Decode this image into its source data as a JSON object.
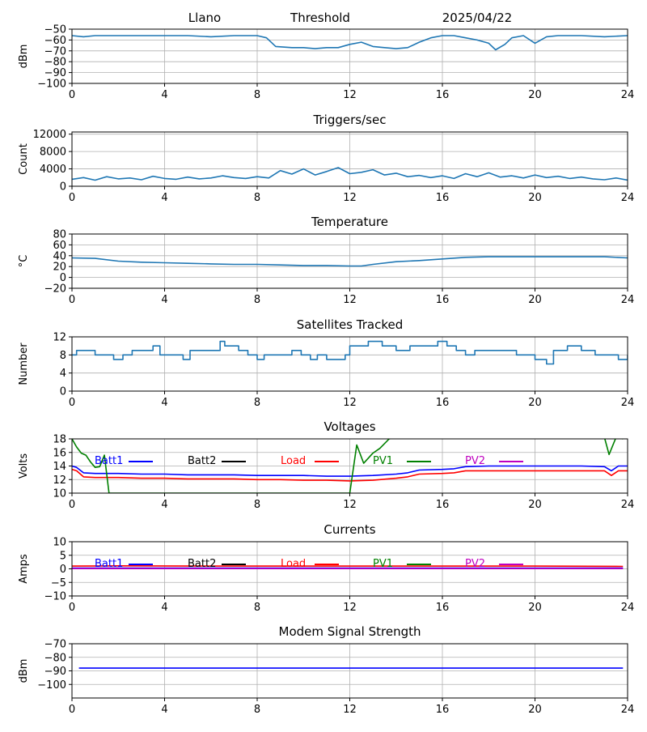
{
  "header": {
    "station": "Llano",
    "mode": "Threshold",
    "date": "2025/04/22"
  },
  "chart_data": [
    {
      "type": "line",
      "title": "",
      "ylabel": "dBm",
      "xlim": [
        0,
        24
      ],
      "ylim": [
        -100,
        -50
      ],
      "xticks": [
        0,
        4,
        8,
        12,
        16,
        20,
        24
      ],
      "yticks": [
        -100,
        -90,
        -80,
        -70,
        -60,
        -50
      ],
      "grid": true,
      "series": [
        {
          "name": "",
          "color": "#1f77b4",
          "x": [
            0,
            0.5,
            1,
            2,
            3,
            4,
            5,
            6,
            7,
            8,
            8.4,
            8.8,
            9.5,
            10,
            10.5,
            11,
            11.5,
            12,
            12.5,
            13,
            13.5,
            14,
            14.5,
            15,
            15.5,
            16,
            16.5,
            17,
            17.5,
            18,
            18.3,
            18.7,
            19,
            19.5,
            20,
            20.5,
            21,
            22,
            23,
            24
          ],
          "y": [
            -56,
            -57,
            -56,
            -56,
            -56,
            -56,
            -56,
            -57,
            -56,
            -56,
            -58,
            -66,
            -67,
            -67,
            -68,
            -67,
            -67,
            -64,
            -62,
            -66,
            -67,
            -68,
            -67,
            -62,
            -58,
            -56,
            -56,
            -58,
            -60,
            -63,
            -69,
            -64,
            -58,
            -56,
            -63,
            -57,
            -56,
            -56,
            -57,
            -56
          ]
        }
      ]
    },
    {
      "type": "line",
      "title": "Triggers/sec",
      "ylabel": "Count",
      "xlim": [
        0,
        24
      ],
      "ylim": [
        0,
        12500
      ],
      "xticks": [
        0,
        4,
        8,
        12,
        16,
        20,
        24
      ],
      "yticks": [
        0,
        4000,
        8000,
        12000
      ],
      "grid": true,
      "series": [
        {
          "name": "",
          "color": "#1f77b4",
          "x": [
            0,
            0.5,
            1,
            1.5,
            2,
            2.5,
            3,
            3.5,
            4,
            4.5,
            5,
            5.5,
            6,
            6.5,
            7,
            7.5,
            8,
            8.5,
            9,
            9.5,
            10,
            10.5,
            11,
            11.5,
            12,
            12.5,
            13,
            13.5,
            14,
            14.5,
            15,
            15.5,
            16,
            16.5,
            17,
            17.5,
            18,
            18.5,
            19,
            19.5,
            20,
            20.5,
            21,
            21.5,
            22,
            22.5,
            23,
            23.5,
            24
          ],
          "y": [
            1600,
            2000,
            1400,
            2200,
            1700,
            1900,
            1500,
            2300,
            1800,
            1600,
            2100,
            1700,
            1900,
            2400,
            2000,
            1800,
            2200,
            1900,
            3600,
            2800,
            4000,
            2600,
            3400,
            4300,
            2900,
            3200,
            3800,
            2600,
            3000,
            2200,
            2500,
            2000,
            2400,
            1800,
            2900,
            2200,
            3100,
            2100,
            2400,
            1900,
            2600,
            2000,
            2300,
            1800,
            2100,
            1700,
            1500,
            1900,
            1400
          ]
        }
      ]
    },
    {
      "type": "line",
      "title": "Temperature",
      "ylabel": "°C",
      "xlim": [
        0,
        24
      ],
      "ylim": [
        -20,
        80
      ],
      "xticks": [
        0,
        4,
        8,
        12,
        16,
        20,
        24
      ],
      "yticks": [
        -20,
        0,
        20,
        40,
        60,
        80
      ],
      "grid": true,
      "series": [
        {
          "name": "",
          "color": "#1f77b4",
          "x": [
            0,
            1,
            2,
            3,
            4,
            5,
            6,
            7,
            8,
            9,
            10,
            11,
            12,
            12.5,
            13,
            14,
            15,
            16,
            17,
            18,
            19,
            20,
            21,
            22,
            23,
            24
          ],
          "y": [
            36,
            35,
            30,
            28,
            27,
            26,
            25,
            24,
            24,
            23,
            22,
            22,
            21,
            21,
            24,
            29,
            31,
            34,
            37,
            38,
            38,
            38,
            38,
            38,
            38,
            36
          ]
        }
      ]
    },
    {
      "type": "line",
      "title": "Satellites Tracked",
      "ylabel": "Number",
      "xlim": [
        0,
        24
      ],
      "ylim": [
        0,
        12
      ],
      "xticks": [
        0,
        4,
        8,
        12,
        16,
        20,
        24
      ],
      "yticks": [
        0,
        4,
        8,
        12
      ],
      "grid": true,
      "series": [
        {
          "name": "",
          "color": "#1f77b4",
          "step": true,
          "x": [
            0,
            0.2,
            0.4,
            1,
            1.3,
            1.8,
            2.2,
            2.6,
            3.5,
            3.8,
            4.8,
            5.1,
            6,
            6.4,
            6.6,
            7.2,
            7.6,
            8,
            8.3,
            8.8,
            9.5,
            9.9,
            10.3,
            10.6,
            11,
            11.8,
            12,
            12.4,
            12.8,
            13.4,
            14,
            14.6,
            15.2,
            15.8,
            16.2,
            16.6,
            17,
            17.4,
            18,
            18.8,
            19.2,
            20,
            20.5,
            20.8,
            21.4,
            22,
            22.6,
            23,
            23.6,
            24
          ],
          "y": [
            8,
            9,
            9,
            8,
            8,
            7,
            8,
            9,
            10,
            8,
            7,
            9,
            9,
            11,
            10,
            9,
            8,
            7,
            8,
            8,
            9,
            8,
            7,
            8,
            7,
            8,
            10,
            10,
            11,
            10,
            9,
            10,
            10,
            11,
            10,
            9,
            8,
            9,
            9,
            9,
            8,
            7,
            6,
            9,
            10,
            9,
            8,
            8,
            7,
            8
          ]
        }
      ]
    },
    {
      "type": "line",
      "title": "Voltages",
      "ylabel": "Volts",
      "xlim": [
        0,
        24
      ],
      "ylim": [
        10,
        18
      ],
      "xticks": [
        0,
        4,
        8,
        12,
        16,
        20,
        24
      ],
      "yticks": [
        10,
        12,
        14,
        16,
        18
      ],
      "grid": true,
      "legend": "top, in a single row",
      "series": [
        {
          "name": "Batt1",
          "color": "#0000ff",
          "x": [
            0,
            0.2,
            0.5,
            1,
            2,
            3,
            4,
            5,
            6,
            7,
            8,
            9,
            10,
            11,
            12,
            13,
            14,
            14.5,
            15,
            16,
            16.5,
            17,
            18,
            19,
            20,
            21,
            22,
            23,
            23.3,
            23.6,
            24
          ],
          "y": [
            14,
            13.8,
            13,
            12.9,
            12.9,
            12.8,
            12.8,
            12.7,
            12.7,
            12.7,
            12.6,
            12.6,
            12.6,
            12.5,
            12.5,
            12.6,
            12.8,
            13,
            13.4,
            13.5,
            13.6,
            13.9,
            14,
            14,
            14,
            14,
            14,
            13.9,
            13.3,
            14,
            14
          ]
        },
        {
          "name": "Batt2",
          "color": "#000000",
          "x": [],
          "y": []
        },
        {
          "name": "Load",
          "color": "#ff0000",
          "x": [
            0,
            0.2,
            0.5,
            1,
            2,
            3,
            4,
            5,
            6,
            7,
            8,
            9,
            10,
            11,
            12,
            13,
            14,
            14.5,
            15,
            16,
            16.5,
            17,
            18,
            19,
            20,
            21,
            22,
            23,
            23.3,
            23.6,
            24
          ],
          "y": [
            13.5,
            13.3,
            12.4,
            12.3,
            12.3,
            12.2,
            12.2,
            12.1,
            12.1,
            12.1,
            12.0,
            12.0,
            11.9,
            11.9,
            11.8,
            11.9,
            12.2,
            12.4,
            12.8,
            12.9,
            13.0,
            13.3,
            13.3,
            13.3,
            13.3,
            13.3,
            13.3,
            13.3,
            12.6,
            13.3,
            13.3
          ]
        },
        {
          "name": "PV1",
          "color": "#008000",
          "x": [
            0,
            0.2,
            0.4,
            0.6,
            0.8,
            1,
            1.2,
            1.4,
            1.6,
            12,
            12.3,
            12.6,
            13,
            13.3,
            13.7,
            14,
            23,
            23.2,
            23.5,
            23.8
          ],
          "y": [
            18,
            16.8,
            15.9,
            15.6,
            14.6,
            13.8,
            13.9,
            15.6,
            10,
            10,
            17.1,
            14.4,
            15.9,
            16.6,
            18,
            18.2,
            18.2,
            15.7,
            18.2,
            18
          ]
        },
        {
          "name": "PV2",
          "color": "#bf00bf",
          "x": [],
          "y": []
        }
      ]
    },
    {
      "type": "line",
      "title": "Currents",
      "ylabel": "Amps",
      "xlim": [
        0,
        24
      ],
      "ylim": [
        -10,
        10
      ],
      "xticks": [
        0,
        4,
        8,
        12,
        16,
        20,
        24
      ],
      "yticks": [
        -10,
        -5,
        0,
        5,
        10
      ],
      "grid": true,
      "legend": "top, in a single row",
      "series": [
        {
          "name": "Batt1",
          "color": "#0000ff",
          "x": [
            0,
            23.8
          ],
          "y": [
            0.3,
            0.3
          ]
        },
        {
          "name": "Batt2",
          "color": "#000000",
          "x": [],
          "y": []
        },
        {
          "name": "Load",
          "color": "#ff0000",
          "x": [
            0,
            2,
            6,
            10,
            12,
            16,
            20,
            23.8
          ],
          "y": [
            1.0,
            1.1,
            1.0,
            1.0,
            1.0,
            1.0,
            1.0,
            0.9
          ]
        },
        {
          "name": "PV1",
          "color": "#008000",
          "x": [],
          "y": []
        },
        {
          "name": "PV2",
          "color": "#bf00bf",
          "x": [
            0,
            23.8
          ],
          "y": [
            0.1,
            0.1
          ]
        }
      ]
    },
    {
      "type": "line",
      "title": "Modem Signal Strength",
      "ylabel": "dBm",
      "xlim": [
        0,
        24
      ],
      "ylim": [
        -110,
        -70
      ],
      "xticks": [
        0,
        4,
        8,
        12,
        16,
        20,
        24
      ],
      "yticks": [
        -100,
        -90,
        -80,
        -70
      ],
      "grid": true,
      "series": [
        {
          "name": "",
          "color": "#0000ff",
          "x": [
            0.3,
            23.8
          ],
          "y": [
            -88,
            -88
          ]
        }
      ]
    }
  ]
}
